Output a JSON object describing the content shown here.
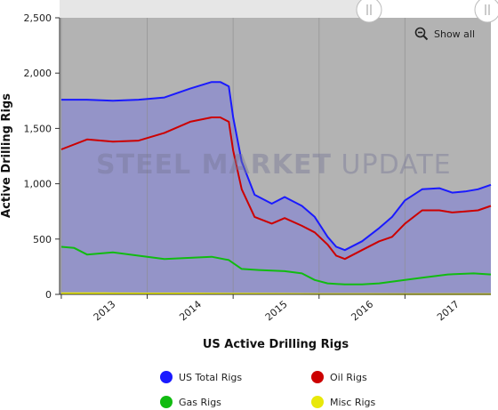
{
  "watermark": {
    "bold": "STEEL MARKET",
    "light": " UPDATE"
  },
  "show_all_label": "Show all",
  "colors": {
    "plot_bg": "#b3b3b3",
    "area_fill": "#9494c8",
    "us_total": "#1a1aff",
    "oil": "#cc0000",
    "gas": "#11bb11",
    "misc": "#e8e80a",
    "grid": "#8c8c8c"
  },
  "chart_data": {
    "type": "area",
    "title": "",
    "xlabel": "US Active Drilling Rigs",
    "ylabel": "Active Drilling Rigs",
    "ylim": [
      0,
      2500
    ],
    "xlim": [
      2012.98,
      2018.0
    ],
    "yticks": [
      0,
      500,
      1000,
      1500,
      2000,
      2500
    ],
    "ytick_labels": [
      "0",
      "500",
      "1,000",
      "1,500",
      "2,000",
      "2,500"
    ],
    "xticks": [
      2013,
      2014,
      2015,
      2016,
      2017
    ],
    "xtick_labels": [
      "2013",
      "2014",
      "2015",
      "2016",
      "2017"
    ],
    "grid": true,
    "legend_position": "bottom",
    "series": [
      {
        "name": "US Total Rigs",
        "color": "us_total",
        "x": [
          2013.0,
          2013.3,
          2013.6,
          2013.9,
          2014.2,
          2014.5,
          2014.75,
          2014.85,
          2014.95,
          2015.0,
          2015.1,
          2015.25,
          2015.45,
          2015.6,
          2015.8,
          2015.95,
          2016.1,
          2016.2,
          2016.3,
          2016.5,
          2016.7,
          2016.85,
          2017.0,
          2017.2,
          2017.4,
          2017.55,
          2017.7,
          2017.85,
          2018.0
        ],
        "values": [
          1760,
          1760,
          1750,
          1760,
          1780,
          1860,
          1920,
          1920,
          1880,
          1600,
          1200,
          900,
          820,
          880,
          800,
          700,
          520,
          430,
          400,
          480,
          600,
          700,
          850,
          950,
          960,
          920,
          930,
          950,
          990
        ]
      },
      {
        "name": "Oil Rigs",
        "color": "oil",
        "x": [
          2013.0,
          2013.3,
          2013.6,
          2013.9,
          2014.2,
          2014.5,
          2014.75,
          2014.85,
          2014.95,
          2015.0,
          2015.1,
          2015.25,
          2015.45,
          2015.6,
          2015.8,
          2015.95,
          2016.1,
          2016.2,
          2016.3,
          2016.5,
          2016.7,
          2016.85,
          2017.0,
          2017.2,
          2017.4,
          2017.55,
          2017.7,
          2017.85,
          2018.0
        ],
        "values": [
          1310,
          1400,
          1380,
          1390,
          1460,
          1560,
          1600,
          1600,
          1560,
          1300,
          950,
          700,
          640,
          690,
          620,
          560,
          450,
          350,
          320,
          400,
          480,
          520,
          640,
          760,
          760,
          740,
          750,
          760,
          800
        ]
      },
      {
        "name": "Gas Rigs",
        "color": "gas",
        "x": [
          2013.0,
          2013.15,
          2013.3,
          2013.6,
          2013.9,
          2014.2,
          2014.5,
          2014.75,
          2014.95,
          2015.1,
          2015.3,
          2015.6,
          2015.8,
          2015.95,
          2016.1,
          2016.3,
          2016.5,
          2016.7,
          2017.0,
          2017.2,
          2017.5,
          2017.8,
          2018.0
        ],
        "values": [
          430,
          420,
          360,
          380,
          350,
          320,
          330,
          340,
          310,
          230,
          220,
          210,
          190,
          130,
          100,
          90,
          90,
          100,
          130,
          150,
          180,
          190,
          180
        ]
      },
      {
        "name": "Misc Rigs",
        "color": "misc",
        "x": [
          2013.0,
          2013.5,
          2014.0,
          2014.5,
          2015.0,
          2015.5,
          2016.0,
          2016.5,
          2017.0,
          2017.5,
          2018.0
        ],
        "values": [
          10,
          10,
          8,
          8,
          6,
          5,
          3,
          3,
          2,
          2,
          2
        ]
      }
    ]
  }
}
